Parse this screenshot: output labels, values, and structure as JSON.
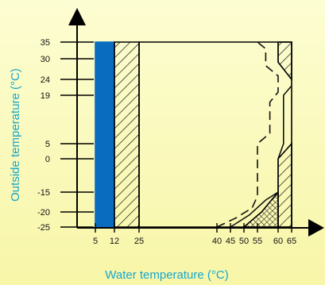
{
  "chart_data": {
    "type": "area",
    "title": "",
    "xlabel": "Water temperature (°C)",
    "ylabel": "Outside temperature (°C)",
    "x_ticks": [
      5,
      12,
      25,
      40,
      45,
      50,
      55,
      60,
      65
    ],
    "y_ticks": [
      -25,
      -20,
      -15,
      0,
      5,
      19,
      24,
      30,
      35
    ],
    "xlim": [
      0,
      65
    ],
    "ylim": [
      -25,
      35
    ],
    "grid": false,
    "regions": [
      {
        "fill": "solid",
        "color": "#0a6cbf",
        "polygon": [
          [
            5,
            -25
          ],
          [
            5,
            35
          ],
          [
            12,
            35
          ],
          [
            12,
            -25
          ]
        ]
      },
      {
        "fill": "hatched",
        "polygon": [
          [
            12,
            -25
          ],
          [
            12,
            35
          ],
          [
            25,
            35
          ],
          [
            25,
            -25
          ]
        ]
      },
      {
        "fill": "outline",
        "polygon": [
          [
            25,
            -25
          ],
          [
            25,
            35
          ],
          [
            65,
            35
          ],
          [
            65,
            -25
          ]
        ]
      },
      {
        "fill": "hatched",
        "polygon": [
          [
            60,
            35
          ],
          [
            65,
            35
          ],
          [
            65,
            24
          ],
          [
            60,
            29
          ]
        ]
      },
      {
        "fill": "hatched",
        "polygon": [
          [
            60,
            -25
          ],
          [
            60,
            0
          ],
          [
            65,
            5
          ],
          [
            65,
            -25
          ]
        ]
      },
      {
        "fill": "cross-hatched",
        "polygon": [
          [
            50,
            -25
          ],
          [
            56,
            -20
          ],
          [
            60,
            -15
          ],
          [
            60,
            -25
          ]
        ]
      }
    ],
    "boundary_lines": [
      {
        "style": "dashed",
        "points": [
          [
            40,
            -25
          ],
          [
            47,
            -22
          ],
          [
            53,
            -19
          ],
          [
            55,
            -16
          ],
          [
            55,
            5
          ],
          [
            58,
            8
          ],
          [
            58,
            17
          ],
          [
            60,
            20
          ],
          [
            60,
            25
          ],
          [
            57,
            28
          ],
          [
            57,
            33
          ],
          [
            55,
            35
          ]
        ]
      },
      {
        "style": "solid",
        "points": [
          [
            45,
            -25
          ],
          [
            52,
            -21
          ],
          [
            57,
            -17
          ],
          [
            60,
            -15
          ],
          [
            60,
            0
          ],
          [
            62,
            5
          ],
          [
            62,
            19
          ],
          [
            65,
            22
          ]
        ]
      },
      {
        "style": "solid",
        "points": [
          [
            60,
            35
          ],
          [
            60,
            29
          ],
          [
            62,
            27
          ]
        ]
      }
    ]
  }
}
